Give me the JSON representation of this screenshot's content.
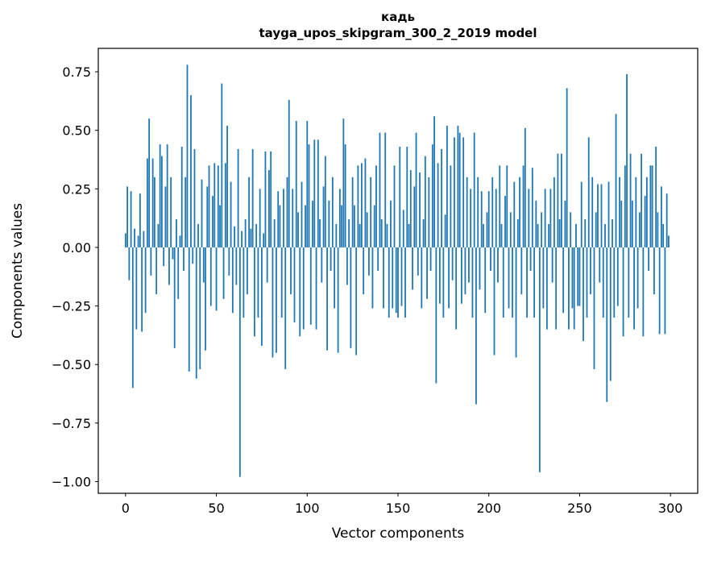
{
  "chart_data": {
    "type": "bar",
    "title": "кадь",
    "subtitle": "tayga_upos_skipgram_300_2_2019 model",
    "xlabel": "Vector components",
    "ylabel": "Components values",
    "xlim": [
      -15,
      315
    ],
    "ylim": [
      -1.05,
      0.85
    ],
    "x_ticks": [
      0,
      50,
      100,
      150,
      200,
      250,
      300
    ],
    "y_ticks": [
      0.75,
      0.5,
      0.25,
      0,
      -0.25,
      -0.5,
      -0.75,
      -1
    ],
    "grid": false,
    "legend": "none",
    "bar_color": "#1f77b4",
    "n_bars": 300,
    "values": [
      0.06,
      0.26,
      -0.14,
      0.24,
      -0.6,
      0.08,
      -0.35,
      0.05,
      0.23,
      -0.36,
      0.07,
      -0.28,
      0.38,
      0.55,
      -0.12,
      0.38,
      0.3,
      -0.2,
      0.1,
      0.44,
      0.39,
      -0.08,
      0.26,
      0.44,
      -0.16,
      0.3,
      -0.05,
      -0.43,
      0.12,
      -0.22,
      0.05,
      0.43,
      -0.1,
      0.3,
      0.78,
      -0.53,
      0.65,
      -0.07,
      0.42,
      -0.56,
      0.1,
      -0.52,
      0.29,
      -0.15,
      -0.44,
      0.26,
      0.35,
      -0.25,
      0.22,
      0.36,
      -0.27,
      0.35,
      0.18,
      0.7,
      -0.22,
      0.36,
      0.52,
      -0.12,
      0.28,
      -0.28,
      0.09,
      -0.16,
      0.42,
      -0.98,
      0.07,
      -0.3,
      0.12,
      -0.2,
      0.3,
      0.08,
      0.42,
      -0.38,
      0.1,
      -0.3,
      0.25,
      -0.42,
      0.06,
      0.41,
      -0.15,
      0.33,
      0.41,
      -0.47,
      0.12,
      -0.45,
      0.24,
      0.18,
      -0.3,
      0.25,
      -0.52,
      0.3,
      0.63,
      -0.2,
      0.25,
      -0.32,
      0.54,
      0.15,
      -0.38,
      0.28,
      -0.35,
      0.18,
      0.54,
      0.44,
      -0.33,
      0.2,
      0.46,
      -0.35,
      0.46,
      0.12,
      -0.15,
      0.26,
      0.39,
      -0.44,
      0.2,
      -0.1,
      0.3,
      -0.26,
      0.1,
      -0.45,
      0.25,
      0.18,
      0.55,
      0.44,
      -0.16,
      0.12,
      -0.43,
      0.3,
      0.18,
      -0.46,
      0.35,
      0.1,
      0.36,
      -0.2,
      0.38,
      0.15,
      -0.12,
      0.3,
      -0.26,
      0.18,
      0.35,
      -0.1,
      0.49,
      0.12,
      -0.26,
      0.49,
      0.1,
      -0.3,
      0.2,
      -0.26,
      0.35,
      -0.28,
      -0.3,
      0.43,
      -0.25,
      0.16,
      -0.3,
      0.43,
      0.1,
      0.33,
      -0.18,
      0.26,
      0.49,
      -0.12,
      0.32,
      -0.26,
      0.12,
      0.39,
      -0.22,
      0.3,
      -0.1,
      0.44,
      0.56,
      -0.58,
      0.36,
      -0.24,
      0.42,
      -0.3,
      0.14,
      0.52,
      -0.26,
      0.35,
      -0.14,
      0.47,
      -0.35,
      0.52,
      0.49,
      -0.24,
      0.47,
      -0.2,
      0.3,
      -0.15,
      0.25,
      -0.3,
      0.49,
      -0.67,
      0.3,
      -0.18,
      0.24,
      0.1,
      -0.28,
      0.15,
      0.24,
      -0.1,
      0.3,
      -0.46,
      0.25,
      -0.15,
      0.35,
      0.1,
      -0.3,
      0.22,
      0.35,
      -0.26,
      0.15,
      -0.3,
      0.28,
      -0.47,
      0.12,
      0.3,
      -0.2,
      0.35,
      0.51,
      -0.3,
      0.25,
      -0.1,
      0.34,
      -0.3,
      0.2,
      0.1,
      -0.96,
      0.15,
      -0.26,
      0.25,
      -0.35,
      0.1,
      0.25,
      -0.15,
      0.3,
      -0.35,
      0.4,
      0.12,
      0.4,
      -0.28,
      0.2,
      0.68,
      -0.35,
      0.15,
      -0.26,
      -0.35,
      0.1,
      -0.25,
      -0.25,
      0.28,
      -0.4,
      0.12,
      -0.3,
      0.47,
      -0.2,
      0.3,
      -0.52,
      0.15,
      0.27,
      -0.15,
      0.27,
      -0.3,
      0.1,
      -0.66,
      0.28,
      -0.57,
      0.12,
      -0.3,
      0.57,
      -0.25,
      0.3,
      0.2,
      -0.38,
      0.35,
      0.74,
      -0.3,
      0.4,
      0.2,
      -0.35,
      0.3,
      -0.26,
      0.15,
      0.4,
      -0.38,
      0.22,
      0.3,
      -0.1,
      0.35,
      0.35,
      -0.2,
      0.43,
      0.15,
      -0.37,
      0.26,
      0.1,
      -0.37,
      0.23,
      0.05
    ]
  }
}
